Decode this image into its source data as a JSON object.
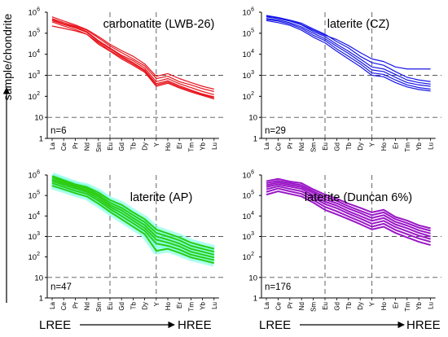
{
  "figure": {
    "ylabel": "sample/chondrite",
    "bottom_left": "LREE",
    "bottom_right": "HREE",
    "colors": {
      "red": "#e8141c",
      "blue": "#1616e8",
      "green": "#2ecc12",
      "purple": "#9a16c6",
      "halo": "#66ffe0"
    }
  },
  "chart_data": [
    {
      "type": "line",
      "title": "carbonatite (LWB-26)",
      "n_label": "n=6",
      "color": "#e8141c",
      "yscale": "log",
      "ylim": [
        1,
        1000000
      ],
      "ytick_labels": [
        [
          "1",
          ""
        ],
        [
          "10",
          ""
        ],
        [
          "10",
          "2"
        ],
        [
          "10",
          "3"
        ],
        [
          "10",
          "4"
        ],
        [
          "10",
          "5"
        ],
        [
          "10",
          "6"
        ]
      ],
      "categories": [
        "La",
        "Ce",
        "Pr",
        "Nd",
        "Sm",
        "Eu",
        "Gd",
        "Tb",
        "Dy",
        "Y",
        "Ho",
        "Er",
        "Tm",
        "Yb",
        "Lu"
      ],
      "reference_lines_y": [
        10,
        1000
      ],
      "reference_lines_x": [
        "Eu",
        "Y"
      ],
      "series": [
        {
          "values": [
            600000,
            380000,
            250000,
            150000,
            70000,
            30000,
            15000,
            8000,
            3500,
            900,
            1200,
            700,
            450,
            300,
            220
          ]
        },
        {
          "values": [
            500000,
            320000,
            220000,
            140000,
            60000,
            25000,
            12000,
            6000,
            2800,
            700,
            900,
            500,
            350,
            230,
            170
          ]
        },
        {
          "values": [
            450000,
            280000,
            200000,
            120000,
            45000,
            20000,
            9000,
            5000,
            2200,
            500,
            700,
            400,
            260,
            170,
            120
          ]
        },
        {
          "values": [
            400000,
            260000,
            180000,
            110000,
            40000,
            18000,
            8000,
            4000,
            1800,
            400,
            550,
            320,
            200,
            130,
            95
          ]
        },
        {
          "values": [
            350000,
            220000,
            150000,
            90000,
            30000,
            14000,
            6000,
            3000,
            1400,
            300,
            420,
            250,
            160,
            110,
            75
          ]
        },
        {
          "values": [
            220000,
            170000,
            130000,
            90000,
            35000,
            15000,
            7000,
            3500,
            1600,
            350,
            480,
            280,
            180,
            120,
            85
          ]
        }
      ]
    },
    {
      "type": "line",
      "title": "laterite (CZ)",
      "n_label": "n=29",
      "color": "#1616e8",
      "yscale": "log",
      "ylim": [
        1,
        1000000
      ],
      "ytick_labels": [
        [
          "1",
          ""
        ],
        [
          "10",
          ""
        ],
        [
          "10",
          "2"
        ],
        [
          "10",
          "3"
        ],
        [
          "10",
          "4"
        ],
        [
          "10",
          "5"
        ],
        [
          "10",
          "6"
        ]
      ],
      "categories": [
        "La",
        "Ce",
        "Pr",
        "Nd",
        "Sm",
        "Eu",
        "Gd",
        "Tb",
        "Dy",
        "Y",
        "Ho",
        "Er",
        "Tm",
        "Yb",
        "Lu"
      ],
      "reference_lines_y": [
        10,
        1000
      ],
      "reference_lines_x": [
        "Eu",
        "Y"
      ],
      "series": [
        {
          "values": [
            700000,
            560000,
            420000,
            300000,
            160000,
            90000,
            40000,
            20000,
            8000,
            4000,
            3000,
            1500,
            800,
            600,
            500
          ]
        },
        {
          "values": [
            600000,
            500000,
            380000,
            250000,
            120000,
            70000,
            30000,
            14000,
            6000,
            2500,
            2000,
            1100,
            600,
            450,
            380
          ]
        },
        {
          "values": [
            500000,
            430000,
            320000,
            200000,
            100000,
            55000,
            24000,
            11000,
            4500,
            1800,
            1500,
            800,
            450,
            350,
            300
          ]
        },
        {
          "values": [
            450000,
            380000,
            280000,
            170000,
            80000,
            45000,
            18000,
            8000,
            3500,
            1300,
            1100,
            600,
            350,
            260,
            220
          ]
        },
        {
          "values": [
            400000,
            320000,
            240000,
            140000,
            65000,
            35000,
            14000,
            6000,
            2600,
            1000,
            850,
            450,
            280,
            210,
            180
          ]
        },
        {
          "values": [
            650000,
            520000,
            400000,
            260000,
            140000,
            80000,
            50000,
            26000,
            12000,
            6000,
            4500,
            2500,
            2000,
            2000,
            2000
          ]
        }
      ]
    },
    {
      "type": "line",
      "title": "laterite (AP)",
      "n_label": "n=47",
      "color": "#2ecc12",
      "halo": true,
      "yscale": "log",
      "ylim": [
        1,
        1000000
      ],
      "ytick_labels": [
        [
          "1",
          ""
        ],
        [
          "10",
          ""
        ],
        [
          "10",
          "2"
        ],
        [
          "10",
          "3"
        ],
        [
          "10",
          "4"
        ],
        [
          "10",
          "5"
        ],
        [
          "10",
          "6"
        ]
      ],
      "categories": [
        "La",
        "Ce",
        "Pr",
        "Nd",
        "Sm",
        "Eu",
        "Gd",
        "Tb",
        "Dy",
        "Y",
        "Ho",
        "Er",
        "Tm",
        "Yb",
        "Lu"
      ],
      "reference_lines_y": [
        10,
        1000
      ],
      "reference_lines_x": [
        "Eu",
        "Y"
      ],
      "series": [
        {
          "values": [
            900000,
            560000,
            350000,
            260000,
            140000,
            60000,
            35000,
            15000,
            7000,
            2200,
            1400,
            900,
            500,
            350,
            250
          ]
        },
        {
          "values": [
            750000,
            480000,
            300000,
            220000,
            110000,
            45000,
            25000,
            11000,
            5000,
            1500,
            1000,
            650,
            350,
            250,
            180
          ]
        },
        {
          "values": [
            600000,
            400000,
            260000,
            180000,
            90000,
            35000,
            19000,
            8000,
            3600,
            1000,
            700,
            450,
            250,
            180,
            130
          ]
        },
        {
          "values": [
            500000,
            330000,
            220000,
            150000,
            70000,
            28000,
            14000,
            6000,
            2600,
            700,
            500,
            330,
            180,
            130,
            95
          ]
        },
        {
          "values": [
            400000,
            260000,
            170000,
            120000,
            55000,
            22000,
            10000,
            4400,
            1900,
            450,
            350,
            230,
            130,
            95,
            70
          ]
        },
        {
          "values": [
            300000,
            200000,
            130000,
            90000,
            40000,
            16000,
            7000,
            3000,
            1300,
            200,
            250,
            160,
            95,
            70,
            50
          ]
        }
      ]
    },
    {
      "type": "line",
      "title": "laterite (Duncan 6%)",
      "n_label": "n=176",
      "color": "#9a16c6",
      "yscale": "log",
      "ylim": [
        1,
        1000000
      ],
      "ytick_labels": [
        [
          "1",
          ""
        ],
        [
          "10",
          ""
        ],
        [
          "10",
          "2"
        ],
        [
          "10",
          "3"
        ],
        [
          "10",
          "4"
        ],
        [
          "10",
          "5"
        ],
        [
          "10",
          "6"
        ]
      ],
      "categories": [
        "La",
        "Ce",
        "Pr",
        "Nd",
        "Sm",
        "Eu",
        "Gd",
        "Tb",
        "Dy",
        "Y",
        "Ho",
        "Er",
        "Tm",
        "Yb",
        "Lu"
      ],
      "reference_lines_y": [
        10,
        1000
      ],
      "reference_lines_x": [
        "Eu",
        "Y"
      ],
      "series": [
        {
          "values": [
            500000,
            650000,
            480000,
            400000,
            200000,
            110000,
            70000,
            40000,
            25000,
            15000,
            20000,
            9000,
            6000,
            3500,
            2500
          ]
        },
        {
          "values": [
            400000,
            520000,
            400000,
            320000,
            160000,
            85000,
            55000,
            30000,
            18000,
            11000,
            15000,
            7000,
            4500,
            2700,
            1900
          ]
        },
        {
          "values": [
            320000,
            430000,
            330000,
            260000,
            130000,
            65000,
            42000,
            23000,
            14000,
            8000,
            11000,
            5200,
            3400,
            2000,
            1400
          ]
        },
        {
          "values": [
            260000,
            350000,
            270000,
            210000,
            100000,
            50000,
            32000,
            17000,
            10000,
            5800,
            8000,
            3900,
            2500,
            1500,
            1000
          ]
        },
        {
          "values": [
            200000,
            280000,
            210000,
            160000,
            80000,
            38000,
            24000,
            13000,
            7500,
            4200,
            5800,
            2900,
            1800,
            1100,
            750
          ]
        },
        {
          "values": [
            150000,
            220000,
            160000,
            120000,
            60000,
            28000,
            17000,
            9500,
            5500,
            3000,
            4200,
            2100,
            1300,
            800,
            550
          ]
        },
        {
          "values": [
            110000,
            160000,
            120000,
            90000,
            45000,
            20000,
            12000,
            7000,
            4000,
            2200,
            3000,
            1500,
            900,
            550,
            380
          ]
        }
      ]
    }
  ]
}
